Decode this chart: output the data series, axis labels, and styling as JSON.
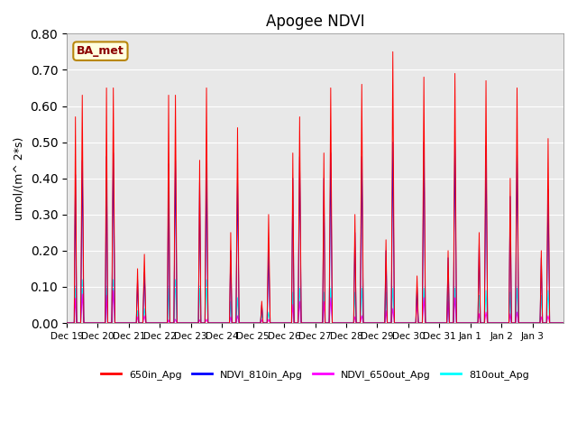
{
  "title": "Apogee NDVI",
  "ylabel": "umol/(m^ 2*s)",
  "annotation": "BA_met",
  "ylim": [
    0.0,
    0.8
  ],
  "yticks": [
    0.0,
    0.1,
    0.2,
    0.3,
    0.4,
    0.5,
    0.6,
    0.7,
    0.8
  ],
  "background_color": "#e8e8e8",
  "legend_entries": [
    "650in_Apg",
    "NDVI_810in_Apg",
    "NDVI_650out_Apg",
    "810out_Apg"
  ],
  "line_colors": [
    "red",
    "blue",
    "magenta",
    "cyan"
  ],
  "x_tick_labels": [
    "Dec 19",
    "Dec 20",
    "Dec 21",
    "Dec 22",
    "Dec 23",
    "Dec 24",
    "Dec 25",
    "Dec 26",
    "Dec 27",
    "Dec 28",
    "Dec 29",
    "Dec 30",
    "Dec 31",
    "Jan 1",
    "Jan 2",
    "Jan 3"
  ],
  "peaks_650in": [
    0.63,
    0.65,
    0.19,
    0.63,
    0.65,
    0.54,
    0.3,
    0.57,
    0.65,
    0.66,
    0.75,
    0.68,
    0.69,
    0.67,
    0.65,
    0.51
  ],
  "peaks2_650in": [
    0.57,
    0.65,
    0.15,
    0.63,
    0.45,
    0.25,
    0.06,
    0.47,
    0.47,
    0.3,
    0.23,
    0.13,
    0.2,
    0.25,
    0.4,
    0.2
  ],
  "peaks_810in": [
    0.45,
    0.47,
    0.14,
    0.45,
    0.45,
    0.4,
    0.2,
    0.46,
    0.47,
    0.46,
    0.5,
    0.5,
    0.5,
    0.49,
    0.47,
    0.37
  ],
  "peaks2_810in": [
    0.41,
    0.46,
    0.12,
    0.44,
    0.39,
    0.2,
    0.05,
    0.4,
    0.4,
    0.25,
    0.2,
    0.1,
    0.18,
    0.22,
    0.35,
    0.18
  ],
  "peaks_650out": [
    0.08,
    0.09,
    0.02,
    0.01,
    0.01,
    0.02,
    0.01,
    0.06,
    0.07,
    0.02,
    0.04,
    0.07,
    0.07,
    0.03,
    0.03,
    0.02
  ],
  "peaks_810out": [
    0.12,
    0.12,
    0.04,
    0.12,
    0.12,
    0.07,
    0.03,
    0.1,
    0.1,
    0.1,
    0.1,
    0.1,
    0.1,
    0.09,
    0.1,
    0.09
  ]
}
